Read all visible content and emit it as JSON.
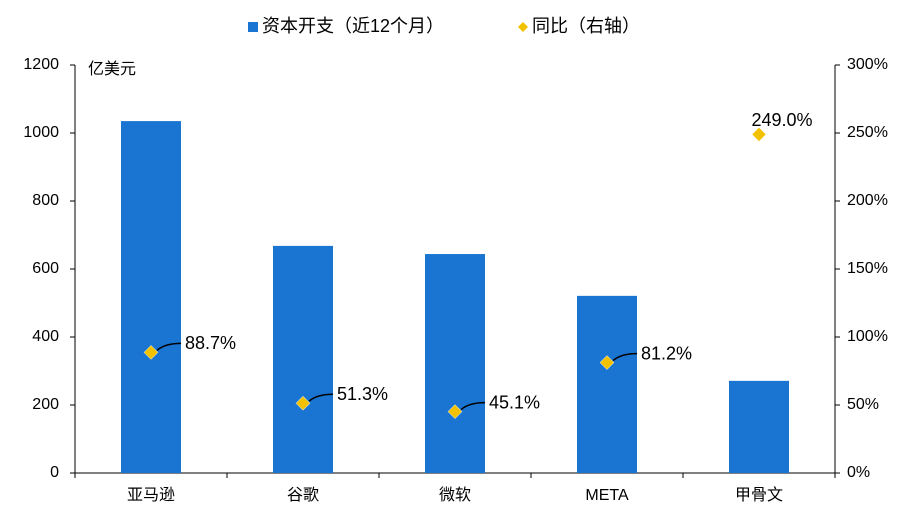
{
  "chart_data": {
    "type": "bar",
    "unit_label": "亿美元",
    "categories": [
      "亚马逊",
      "谷歌",
      "微软",
      "META",
      "甲骨文"
    ],
    "series": [
      {
        "name": "资本开支（近12个月）",
        "type": "bar",
        "color": "#1a75d2",
        "values": [
          1035,
          668,
          644,
          521,
          271
        ]
      },
      {
        "name": "同比（右轴）",
        "type": "scatter",
        "axis": "y2",
        "color": "#f2c200",
        "values": [
          88.7,
          51.3,
          45.1,
          81.2,
          249.0
        ],
        "value_labels": [
          "88.7%",
          "51.3%",
          "45.1%",
          "81.2%",
          "249.0%"
        ]
      }
    ],
    "ylim": [
      0,
      1200
    ],
    "yticks": [
      0,
      200,
      400,
      600,
      800,
      1000,
      1200
    ],
    "y2lim": [
      0,
      300
    ],
    "y2ticks": [
      {
        "value": 0,
        "label": "0%"
      },
      {
        "value": 50,
        "label": "50%"
      },
      {
        "value": 100,
        "label": "100%"
      },
      {
        "value": 150,
        "label": "150%"
      },
      {
        "value": 200,
        "label": "200%"
      },
      {
        "value": 250,
        "label": "250%"
      },
      {
        "value": 300,
        "label": "300%"
      }
    ],
    "grid": false,
    "legend": "top"
  }
}
